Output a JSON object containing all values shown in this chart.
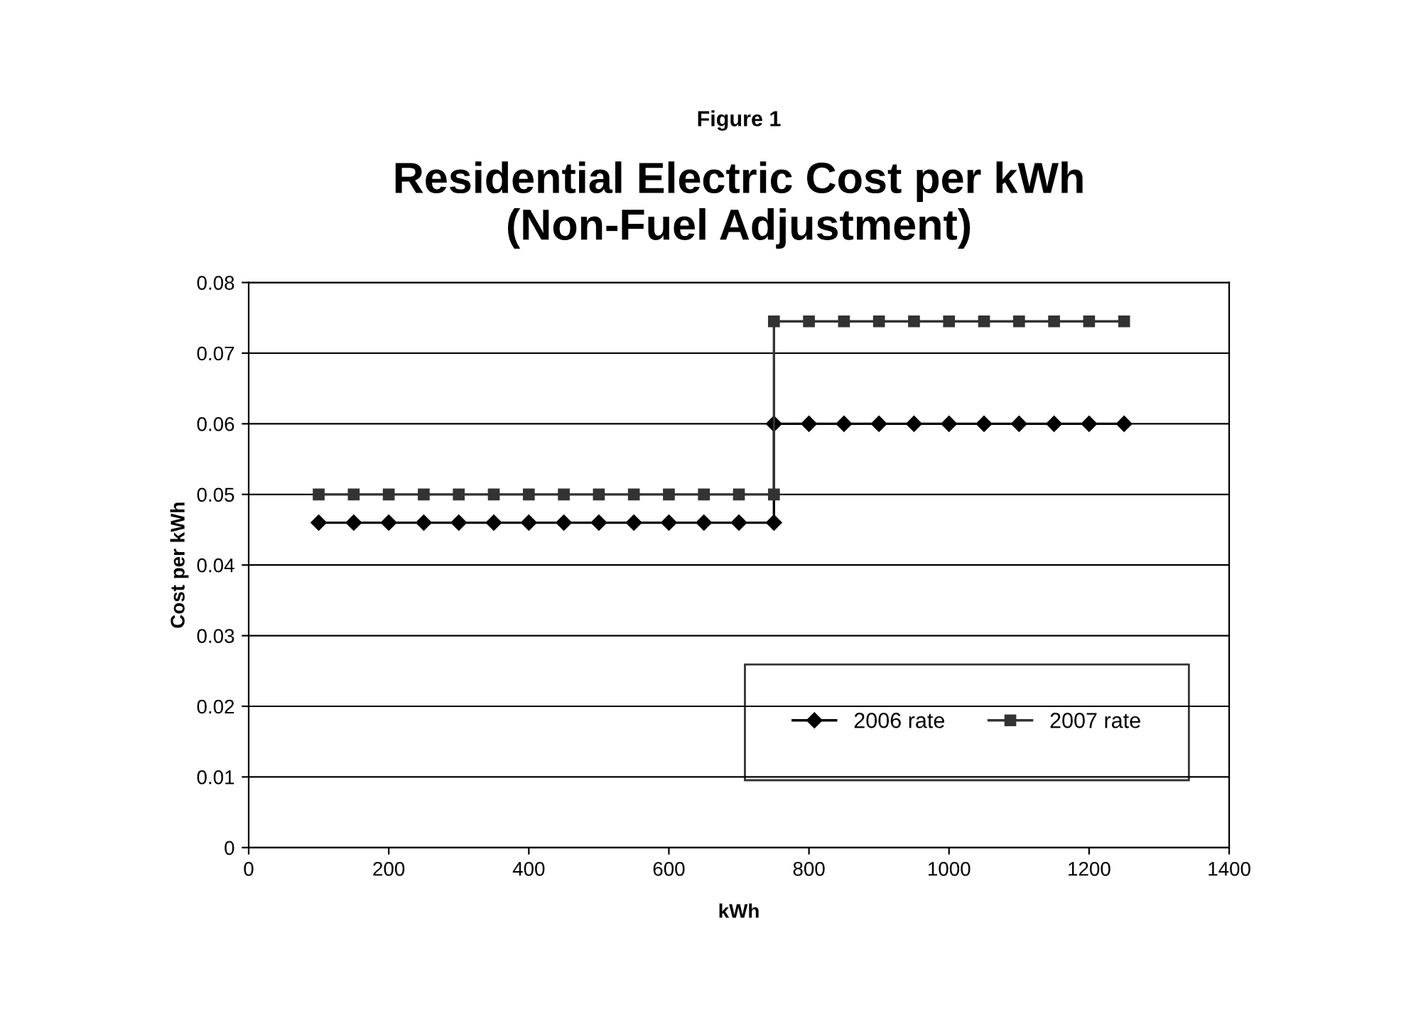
{
  "chart_data": {
    "type": "line",
    "title": "Residential Electric Cost per kWh\n(Non-Fuel Adjustment)",
    "subtitle": "Figure 1",
    "xlabel": "kWh",
    "ylabel": "Cost per kWh",
    "xlim": [
      0,
      1400
    ],
    "xticks": [
      0,
      200,
      400,
      600,
      800,
      1000,
      1200,
      1400
    ],
    "ylim": [
      0,
      0.08
    ],
    "yticks": [
      0,
      0.01,
      0.02,
      0.03,
      0.04,
      0.05,
      0.06,
      0.07,
      0.08
    ],
    "grid": "y",
    "legend": "bottom right",
    "series": [
      {
        "name": "2006 rate",
        "color": "#000000",
        "marker": "diamond",
        "x": [
          100,
          150,
          200,
          250,
          300,
          350,
          400,
          450,
          500,
          550,
          600,
          650,
          700,
          750,
          750,
          800,
          850,
          900,
          950,
          1000,
          1050,
          1100,
          1150,
          1200,
          1250
        ],
        "values": [
          0.046,
          0.046,
          0.046,
          0.046,
          0.046,
          0.046,
          0.046,
          0.046,
          0.046,
          0.046,
          0.046,
          0.046,
          0.046,
          0.046,
          0.06,
          0.06,
          0.06,
          0.06,
          0.06,
          0.06,
          0.06,
          0.06,
          0.06,
          0.06,
          0.06
        ]
      },
      {
        "name": "2007 rate",
        "color": "#333333",
        "marker": "square",
        "x": [
          100,
          150,
          200,
          250,
          300,
          350,
          400,
          450,
          500,
          550,
          600,
          650,
          700,
          750,
          750,
          800,
          850,
          900,
          950,
          1000,
          1050,
          1100,
          1150,
          1200,
          1250
        ],
        "values": [
          0.05,
          0.05,
          0.05,
          0.05,
          0.05,
          0.05,
          0.05,
          0.05,
          0.05,
          0.05,
          0.05,
          0.05,
          0.05,
          0.05,
          0.0745,
          0.0745,
          0.0745,
          0.0745,
          0.0745,
          0.0745,
          0.0745,
          0.0745,
          0.0745,
          0.0745,
          0.0745
        ]
      }
    ]
  }
}
